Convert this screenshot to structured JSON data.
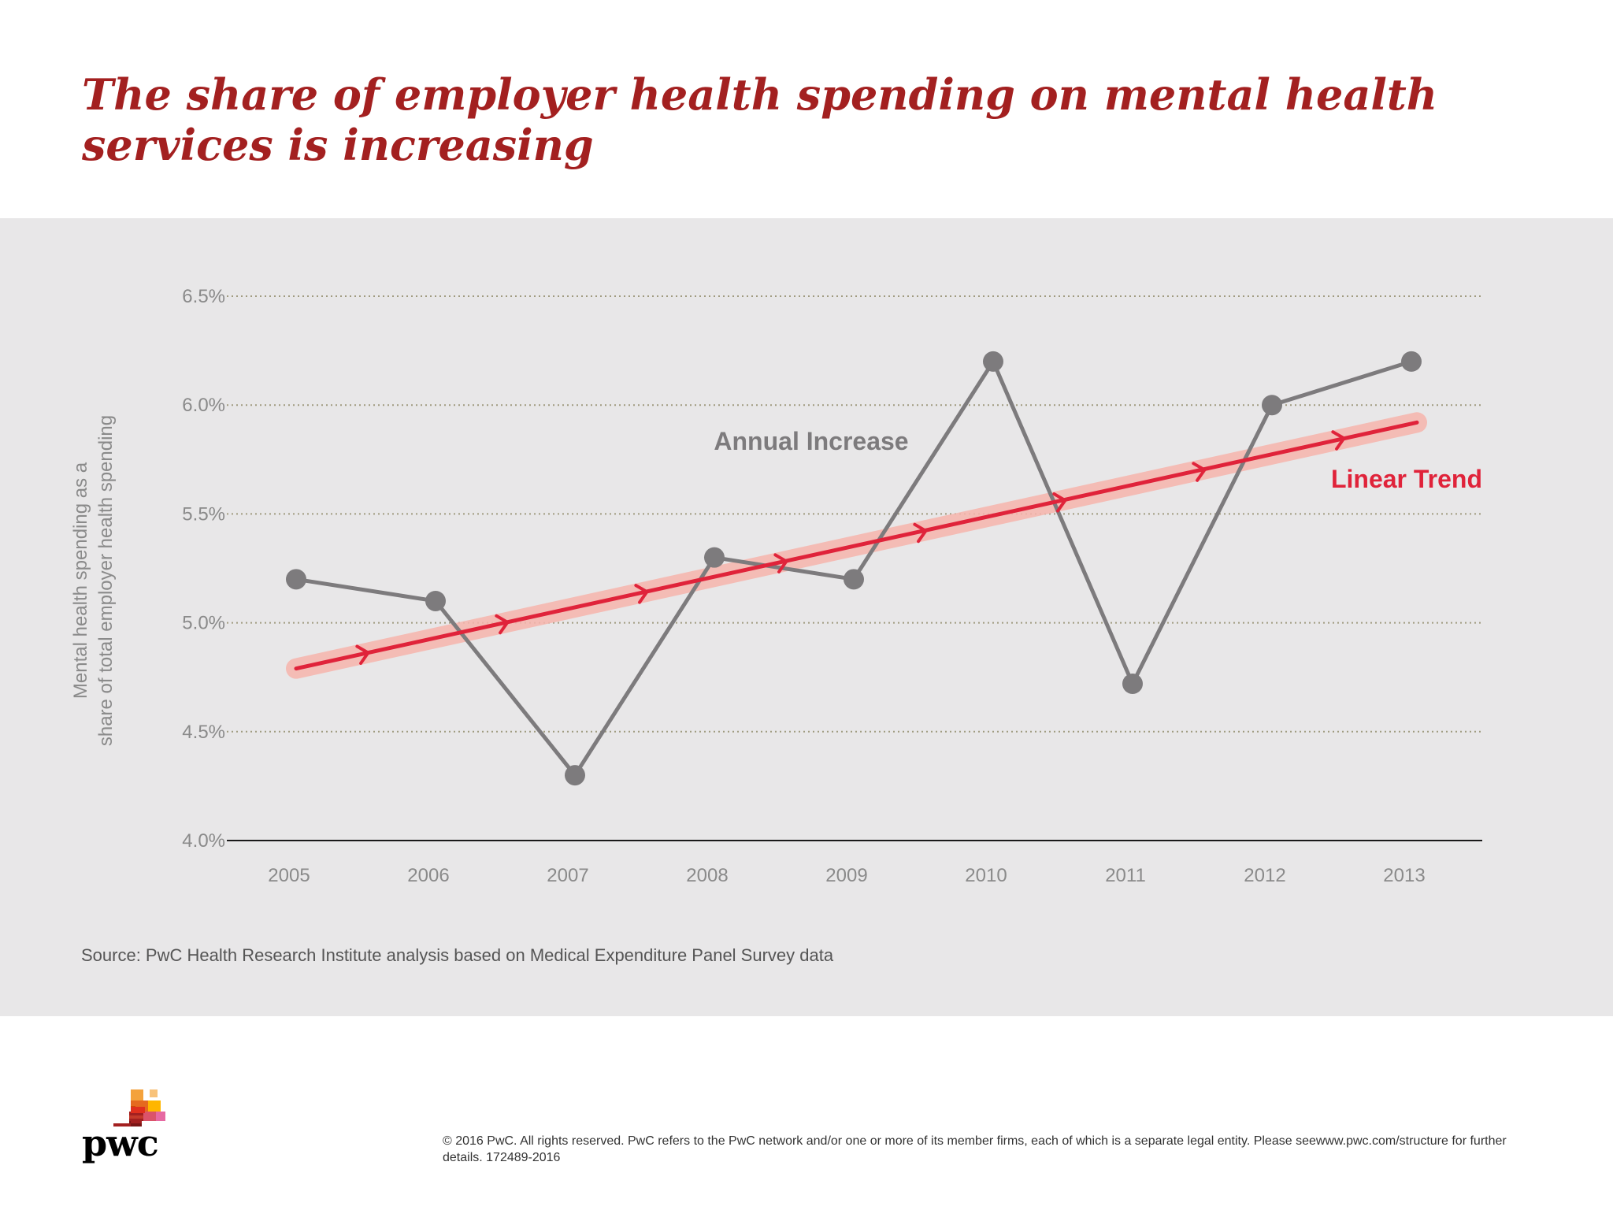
{
  "page": {
    "title": "The share of employer health spending on mental health services is increasing",
    "source": "Source: PwC Health Research Institute analysis based on Medical Expenditure Panel Survey data",
    "copyright": "© 2016 PwC. All rights reserved. PwC refers to the PwC network and/or one or more of its member firms, each of which is a separate legal entity. Please seewww.pwc.com/structure for further details. 172489-2016",
    "logo_text": "pwc"
  },
  "colors": {
    "title": "#a32020",
    "annual": "#7d7b7d",
    "trend": "#e0233a",
    "trend_glow": "#f7b5ad",
    "grid": "#a09b80",
    "panel": "#e8e7e8"
  },
  "chart_data": {
    "type": "line",
    "ylabel_lines": [
      "Mental health spending as a",
      "share of total employer health spending"
    ],
    "ylim": [
      4.0,
      6.5
    ],
    "yticks": [
      4.0,
      4.5,
      5.0,
      5.5,
      6.0,
      6.5
    ],
    "ytick_labels": [
      "4.0%",
      "4.5%",
      "5.0%",
      "5.5%",
      "6.0%",
      "6.5%"
    ],
    "categories": [
      "2005",
      "2006",
      "2007",
      "2008",
      "2009",
      "2010",
      "2011",
      "2012",
      "2013"
    ],
    "grid": true,
    "series": [
      {
        "name": "Annual Increase",
        "values": [
          5.2,
          5.1,
          4.3,
          5.3,
          5.2,
          6.2,
          4.72,
          6.0,
          6.2
        ]
      },
      {
        "name": "Linear Trend",
        "values": [
          4.79,
          4.93,
          5.07,
          5.21,
          5.35,
          5.49,
          5.63,
          5.77,
          5.92
        ]
      }
    ]
  }
}
